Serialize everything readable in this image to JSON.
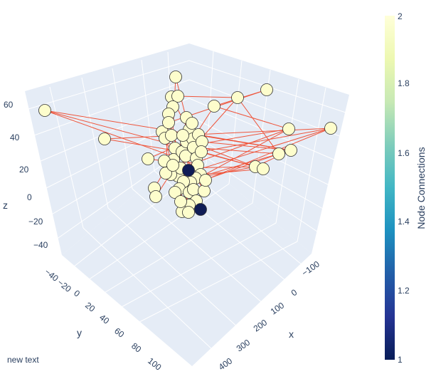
{
  "chart_data": {
    "type": "scatter3d",
    "axes": {
      "x": {
        "label": "x",
        "ticks": [
          "−100",
          "0",
          "100",
          "200",
          "300",
          "400"
        ]
      },
      "y": {
        "label": "y",
        "ticks": [
          "−40",
          "−20",
          "0",
          "20",
          "40",
          "60",
          "80",
          "100"
        ]
      },
      "z": {
        "label": "z",
        "ticks": [
          "60",
          "40",
          "20",
          "0",
          "−20",
          "−40"
        ]
      }
    },
    "edge_color": "#ef553b",
    "background_color": "#e5ecf6",
    "colorbar": {
      "title": "Node Connections",
      "colorscale": "YlGnBu",
      "ticks": [
        "2",
        "1.8",
        "1.6",
        "1.4",
        "1.2",
        "1"
      ],
      "range": [
        1,
        2
      ]
    },
    "annotation": "new text"
  }
}
